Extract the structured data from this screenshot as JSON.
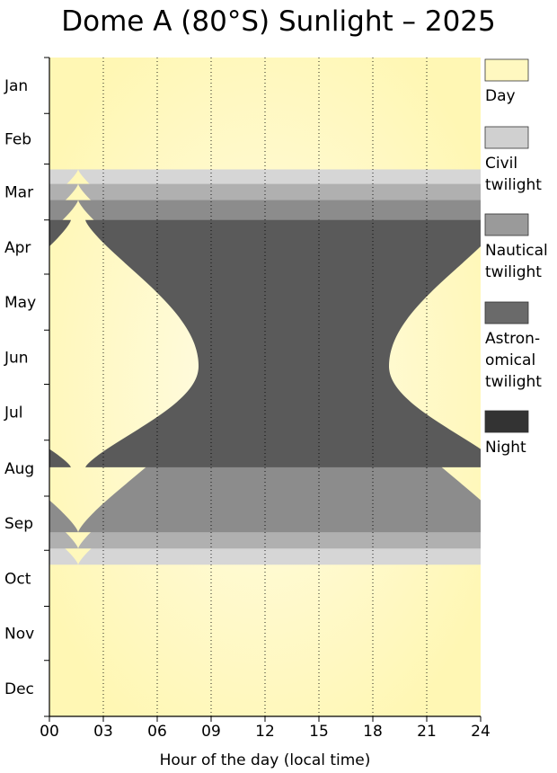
{
  "chart_data": {
    "type": "heatmap",
    "title": "Dome A (80°S) Sunlight – 2025",
    "xlabel": "Hour of the day (local time)",
    "ylabel": "",
    "xlim": [
      0,
      24
    ],
    "x_ticks": [
      "00",
      "03",
      "06",
      "09",
      "12",
      "15",
      "18",
      "21",
      "24"
    ],
    "y_categories": [
      "Jan",
      "Feb",
      "Mar",
      "Apr",
      "May",
      "Jun",
      "Jul",
      "Aug",
      "Sep",
      "Oct",
      "Nov",
      "Dec"
    ],
    "grid": "vertical dotted lines at 3-hour intervals",
    "legend_position": "right",
    "solar_noon_hour": 13.6,
    "categories": [
      {
        "name": "Day",
        "color": "#fff8b8"
      },
      {
        "name": "Civil twilight",
        "color": "#d6d6d6"
      },
      {
        "name": "Nautical twilight",
        "color": "#b0b0b0"
      },
      {
        "name": "Astronomical twilight",
        "color": "#8c8c8c"
      },
      {
        "name": "Night",
        "color": "#5a5a5a"
      }
    ],
    "legend_entries": [
      {
        "lines": [
          "Day"
        ],
        "swatch": "#fff8c0"
      },
      {
        "lines": [
          "Civil",
          "twilight"
        ],
        "swatch": "#d0d0d0"
      },
      {
        "lines": [
          "Nautical",
          "twilight"
        ],
        "swatch": "#9a9a9a"
      },
      {
        "lines": [
          "Astron-",
          "omical",
          "twilight"
        ],
        "swatch": "#6a6a6a"
      },
      {
        "lines": [
          "Night"
        ],
        "swatch": "#333333"
      }
    ],
    "boundaries": [
      {
        "name": "Day / Civil twilight",
        "period_start_date": "Mar 4",
        "period_end_date": "Oct 9",
        "half_width_hours": 12,
        "narrowest_half_width_hours": 1.5,
        "narrowest_date": "Jun 21"
      },
      {
        "name": "Civil / Nautical twilight",
        "period_start_date": "Mar 12",
        "period_end_date": "Sep 30",
        "half_width_hours": 12,
        "narrowest_half_width_hours": 2.9,
        "narrowest_date": "Jun 21"
      },
      {
        "name": "Nautical / Astronomical twilight",
        "period_start_date": "Mar 21",
        "period_end_date": "Sep 21",
        "half_width_hours": 12,
        "narrowest_half_width_hours": 4.3,
        "narrowest_date": "Jun 21"
      },
      {
        "name": "Astronomical twilight / Night",
        "period_start_date": "Apr 1",
        "period_end_date": "Aug 16",
        "half_width_hours": 11.6,
        "narrowest_half_width_hours": 5.3,
        "narrowest_date": "Jun 21"
      }
    ]
  }
}
